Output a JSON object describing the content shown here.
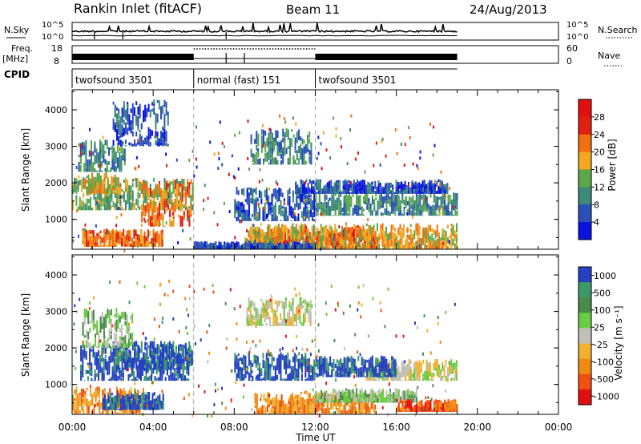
{
  "header": {
    "station": "Rankin Inlet (fitACF)",
    "beam": "Beam 11",
    "date": "24/Aug/2013"
  },
  "strips": {
    "nsky_label": "N.Sky",
    "nsearch_label": "N.Search",
    "nsky_ticks": [
      "10^5",
      "10^0"
    ],
    "freq_label_1": "Freq.",
    "freq_label_2": "[MHz]",
    "freq_ticks": [
      "18",
      "8"
    ],
    "nave_label": "Nave",
    "nave_ticks": [
      "60",
      "0"
    ],
    "cpid_label": "CPID",
    "cpid_segments": [
      {
        "label": "twofsound 3501",
        "start": 0,
        "end": 6
      },
      {
        "label": "normal (fast) 151",
        "start": 6,
        "end": 12
      },
      {
        "label": "twofsound 3501",
        "start": 12,
        "end": 19
      }
    ]
  },
  "chart_data": [
    {
      "type": "heatmap",
      "panel": "power",
      "ylabel": "Slant Range [km]",
      "xlabel": "",
      "x_range_hours": [
        0,
        24
      ],
      "ylim": [
        180,
        4550
      ],
      "yticks": [
        1000,
        2000,
        3000,
        4000
      ],
      "colorbar_label": "Power [dB]",
      "colorbar_ticks": [
        "4",
        "8",
        "12",
        "16",
        "20",
        "24",
        "28"
      ],
      "colors": [
        "#0a12e0",
        "#2a4fb8",
        "#3d8a78",
        "#5aa84a",
        "#f0a820",
        "#f07010",
        "#e02010",
        "#e01010"
      ],
      "regions": [
        {
          "t0": 0.0,
          "t1": 6.0,
          "r0": 1250,
          "r1": 2150,
          "level": 3
        },
        {
          "t0": 3.4,
          "t1": 5.9,
          "r0": 800,
          "r1": 2100,
          "level": 5
        },
        {
          "t0": 0.6,
          "t1": 2.3,
          "r0": 1700,
          "r1": 2300,
          "level": 4
        },
        {
          "t0": 0.3,
          "t1": 2.6,
          "r0": 2300,
          "r1": 3200,
          "level": 2
        },
        {
          "t0": 0.5,
          "t1": 4.5,
          "r0": 250,
          "r1": 750,
          "level": 5
        },
        {
          "t0": 2.0,
          "t1": 4.7,
          "r0": 3000,
          "r1": 4300,
          "level": 1
        },
        {
          "t0": 8.8,
          "t1": 11.8,
          "r0": 2500,
          "r1": 3500,
          "level": 2
        },
        {
          "t0": 8.0,
          "t1": 12.0,
          "r0": 950,
          "r1": 1900,
          "level": 1
        },
        {
          "t0": 9.0,
          "t1": 15.0,
          "r0": 200,
          "r1": 800,
          "level": 6
        },
        {
          "t0": 8.5,
          "t1": 19.0,
          "r0": 180,
          "r1": 900,
          "level": 4
        },
        {
          "t0": 12.0,
          "t1": 19.0,
          "r0": 1100,
          "r1": 1750,
          "level": 2
        },
        {
          "t0": 11.0,
          "t1": 18.5,
          "r0": 1700,
          "r1": 2100,
          "level": 1
        },
        {
          "t0": 6.0,
          "t1": 12.0,
          "r0": 180,
          "r1": 400,
          "level": 1
        }
      ]
    },
    {
      "type": "heatmap",
      "panel": "velocity",
      "ylabel": "Slant Range [km]",
      "xlabel": "Time UT",
      "x_range_hours": [
        0,
        24
      ],
      "xticks": [
        "00:00",
        "04:00",
        "08:00",
        "12:00",
        "16:00",
        "20:00",
        "00:00"
      ],
      "ylim": [
        180,
        4550
      ],
      "yticks": [
        1000,
        2000,
        3000,
        4000
      ],
      "colorbar_label": "Velocity [m s⁻¹]",
      "colorbar_ticks": [
        "1000",
        "500",
        "100",
        "25",
        "-25",
        "-100",
        "-500",
        "-1000"
      ],
      "colors": [
        "#2540c0",
        "#3a9a6a",
        "#4a8a4a",
        "#6acc40",
        "#c0c0b8",
        "#f0b030",
        "#f08a10",
        "#f05010",
        "#e01010"
      ],
      "regions": [
        {
          "t0": 0.4,
          "t1": 5.9,
          "r0": 1100,
          "r1": 2100,
          "level": 0
        },
        {
          "t0": 2.0,
          "t1": 5.8,
          "r0": 1400,
          "r1": 2200,
          "level": 0
        },
        {
          "t0": 0.5,
          "t1": 3.0,
          "r0": 2000,
          "r1": 3100,
          "level": 3
        },
        {
          "t0": 0.0,
          "t1": 3.5,
          "r0": 200,
          "r1": 950,
          "level": 6
        },
        {
          "t0": 1.5,
          "t1": 4.5,
          "r0": 300,
          "r1": 800,
          "level": 0
        },
        {
          "t0": 8.6,
          "t1": 11.8,
          "r0": 2600,
          "r1": 3400,
          "level": 4
        },
        {
          "t0": 8.0,
          "t1": 12.0,
          "r0": 1100,
          "r1": 1900,
          "level": 0
        },
        {
          "t0": 9.0,
          "t1": 15.0,
          "r0": 200,
          "r1": 800,
          "level": 6
        },
        {
          "t0": 12.0,
          "t1": 17.0,
          "r0": 500,
          "r1": 900,
          "level": 3
        },
        {
          "t0": 14.5,
          "t1": 19.0,
          "r0": 1100,
          "r1": 1700,
          "level": 4
        },
        {
          "t0": 12.0,
          "t1": 16.0,
          "r0": 1200,
          "r1": 1800,
          "level": 0
        },
        {
          "t0": 16.0,
          "t1": 19.0,
          "r0": 250,
          "r1": 600,
          "level": 7
        }
      ]
    }
  ]
}
